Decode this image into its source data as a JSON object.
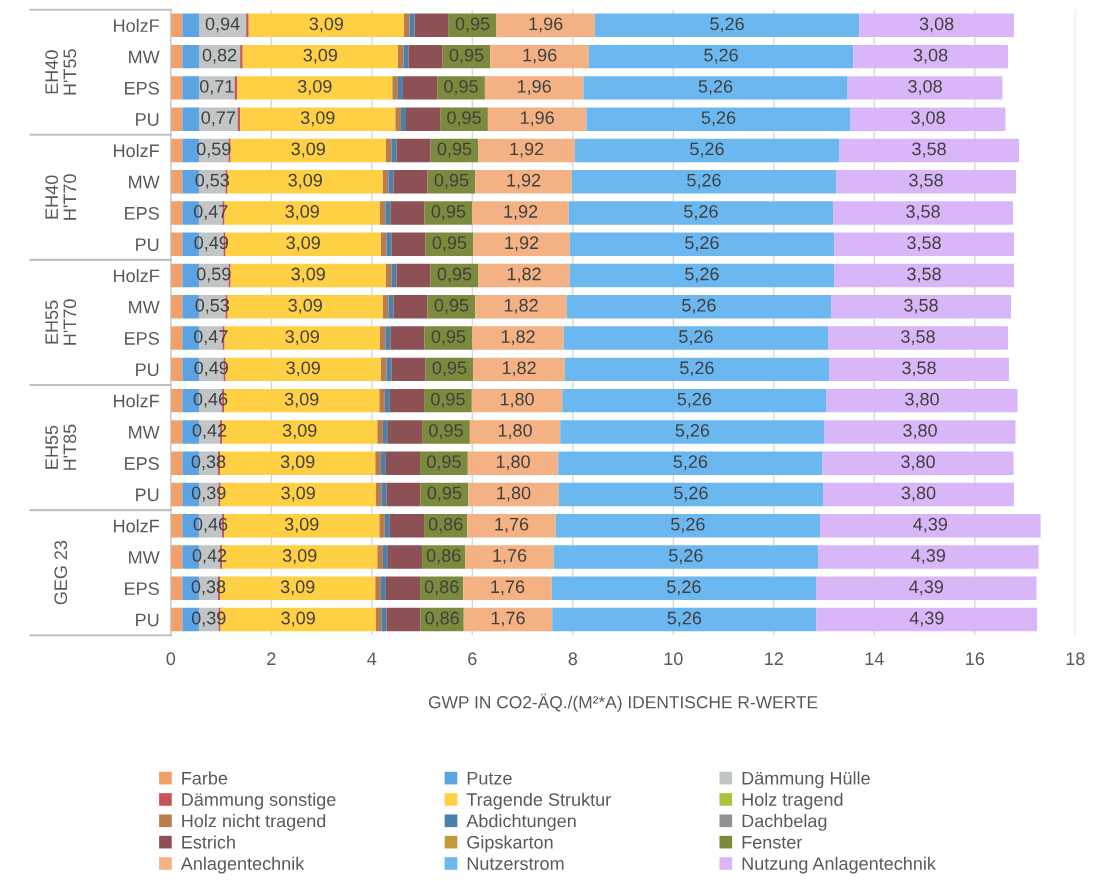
{
  "chart_data": {
    "type": "bar",
    "orientation": "horizontal",
    "stacked": true,
    "categories": [
      "HolzF",
      "MW",
      "EPS",
      "PU",
      "HolzF",
      "MW",
      "EPS",
      "PU",
      "HolzF",
      "MW",
      "EPS",
      "PU",
      "HolzF",
      "MW",
      "EPS",
      "PU",
      "HolzF",
      "MW",
      "EPS",
      "PU"
    ],
    "annotations": [
      "EH40 H'T55",
      "EH40 H'T70",
      "EH55 H'T70",
      "EH55 H'T85",
      "GEG 23"
    ],
    "xlabel": "GWP IN CO2-ÄQ./(M²*A) IDENTISCHE R-WERTE",
    "xlim": [
      0,
      18
    ],
    "xticks": [
      0,
      2,
      4,
      6,
      8,
      10,
      12,
      14,
      16,
      18
    ],
    "grid": "x",
    "legend": "bottom",
    "series": [
      {
        "name": "Farbe",
        "color": "#f0a068",
        "values": [
          0.23,
          0.23,
          0.23,
          0.23,
          0.23,
          0.23,
          0.23,
          0.23,
          0.23,
          0.23,
          0.23,
          0.23,
          0.23,
          0.23,
          0.23,
          0.23,
          0.23,
          0.23,
          0.23,
          0.23
        ]
      },
      {
        "name": "Putze",
        "color": "#5ba3e3",
        "values": [
          0.33,
          0.33,
          0.33,
          0.33,
          0.33,
          0.33,
          0.33,
          0.33,
          0.33,
          0.33,
          0.33,
          0.33,
          0.33,
          0.33,
          0.33,
          0.33,
          0.33,
          0.33,
          0.33,
          0.33
        ]
      },
      {
        "name": "Dämmung Hülle",
        "color": "#c1c5c5",
        "values": [
          0.94,
          0.82,
          0.71,
          0.77,
          0.59,
          0.53,
          0.47,
          0.49,
          0.59,
          0.53,
          0.47,
          0.49,
          0.46,
          0.42,
          0.38,
          0.39,
          0.46,
          0.42,
          0.38,
          0.39
        ],
        "value_labels": [
          "0,94",
          "0,82",
          "0,71",
          "0,77",
          "0,59",
          "0,53",
          "0,47",
          "0,49",
          "0,59",
          "0,53",
          "0,47",
          "0,49",
          "0,46",
          "0,42",
          "0,38",
          "0,39",
          "0,46",
          "0,42",
          "0,38",
          "0,39"
        ]
      },
      {
        "name": "Dämmung sonstige",
        "color": "#c9525c",
        "values": [
          0.05,
          0.05,
          0.05,
          0.05,
          0.04,
          0.04,
          0.04,
          0.04,
          0.04,
          0.04,
          0.04,
          0.04,
          0.04,
          0.04,
          0.04,
          0.04,
          0.04,
          0.04,
          0.04,
          0.04
        ]
      },
      {
        "name": "Tragende Struktur",
        "color": "#ffd044",
        "values": [
          3.09,
          3.09,
          3.09,
          3.09,
          3.09,
          3.09,
          3.09,
          3.09,
          3.09,
          3.09,
          3.09,
          3.09,
          3.09,
          3.09,
          3.09,
          3.09,
          3.09,
          3.09,
          3.09,
          3.09
        ],
        "value_labels": [
          "3,09",
          "3,09",
          "3,09",
          "3,09",
          "3,09",
          "3,09",
          "3,09",
          "3,09",
          "3,09",
          "3,09",
          "3,09",
          "3,09",
          "3,09",
          "3,09",
          "3,09",
          "3,09",
          "3,09",
          "3,09",
          "3,09",
          "3,09"
        ]
      },
      {
        "name": "Holz tragend",
        "color": "#a9c43f",
        "values": [
          0,
          0,
          0,
          0,
          0,
          0,
          0,
          0,
          0,
          0,
          0,
          0,
          0,
          0,
          0,
          0,
          0,
          0,
          0,
          0
        ]
      },
      {
        "name": "Holz nicht tragend",
        "color": "#b87d4b",
        "values": [
          0.11,
          0.11,
          0.11,
          0.11,
          0.11,
          0.11,
          0.11,
          0.11,
          0.11,
          0.11,
          0.11,
          0.11,
          0.11,
          0.11,
          0.11,
          0.11,
          0.11,
          0.11,
          0.11,
          0.11
        ]
      },
      {
        "name": "Abdichtungen",
        "color": "#4a80ab",
        "values": [
          0.1,
          0.1,
          0.1,
          0.1,
          0.1,
          0.1,
          0.1,
          0.1,
          0.1,
          0.1,
          0.1,
          0.1,
          0.1,
          0.1,
          0.1,
          0.1,
          0.1,
          0.1,
          0.1,
          0.1
        ]
      },
      {
        "name": "Dachbelag",
        "color": "#929292",
        "values": [
          0,
          0,
          0,
          0,
          0,
          0,
          0,
          0,
          0,
          0,
          0,
          0,
          0,
          0,
          0,
          0,
          0,
          0,
          0,
          0
        ]
      },
      {
        "name": "Estrich",
        "color": "#8c5055",
        "values": [
          0.68,
          0.68,
          0.68,
          0.68,
          0.68,
          0.68,
          0.68,
          0.68,
          0.68,
          0.68,
          0.68,
          0.68,
          0.68,
          0.68,
          0.68,
          0.68,
          0.68,
          0.68,
          0.68,
          0.68
        ]
      },
      {
        "name": "Gipskarton",
        "color": "#c09a3c",
        "values": [
          0,
          0,
          0,
          0,
          0,
          0,
          0,
          0,
          0,
          0,
          0,
          0,
          0,
          0,
          0,
          0,
          0,
          0,
          0,
          0
        ]
      },
      {
        "name": "Fenster",
        "color": "#7b8a3c",
        "values": [
          0.95,
          0.95,
          0.95,
          0.95,
          0.95,
          0.95,
          0.95,
          0.95,
          0.95,
          0.95,
          0.95,
          0.95,
          0.95,
          0.95,
          0.95,
          0.95,
          0.86,
          0.86,
          0.86,
          0.86
        ],
        "value_labels": [
          "0,95",
          "0,95",
          "0,95",
          "0,95",
          "0,95",
          "0,95",
          "0,95",
          "0,95",
          "0,95",
          "0,95",
          "0,95",
          "0,95",
          "0,95",
          "0,95",
          "0,95",
          "0,95",
          "0,86",
          "0,86",
          "0,86",
          "0,86"
        ]
      },
      {
        "name": "Anlagentechnik",
        "color": "#f4b183",
        "values": [
          1.96,
          1.96,
          1.96,
          1.96,
          1.92,
          1.92,
          1.92,
          1.92,
          1.82,
          1.82,
          1.82,
          1.82,
          1.8,
          1.8,
          1.8,
          1.8,
          1.76,
          1.76,
          1.76,
          1.76
        ],
        "value_labels": [
          "1,96",
          "1,96",
          "1,96",
          "1,96",
          "1,92",
          "1,92",
          "1,92",
          "1,92",
          "1,82",
          "1,82",
          "1,82",
          "1,82",
          "1,80",
          "1,80",
          "1,80",
          "1,80",
          "1,76",
          "1,76",
          "1,76",
          "1,76"
        ]
      },
      {
        "name": "Nutzerstrom",
        "color": "#6bb8f0",
        "values": [
          5.26,
          5.26,
          5.26,
          5.26,
          5.26,
          5.26,
          5.26,
          5.26,
          5.26,
          5.26,
          5.26,
          5.26,
          5.26,
          5.26,
          5.26,
          5.26,
          5.26,
          5.26,
          5.26,
          5.26
        ],
        "value_labels": [
          "5,26",
          "5,26",
          "5,26",
          "5,26",
          "5,26",
          "5,26",
          "5,26",
          "5,26",
          "5,26",
          "5,26",
          "5,26",
          "5,26",
          "5,26",
          "5,26",
          "5,26",
          "5,26",
          "5,26",
          "5,26",
          "5,26",
          "5,26"
        ]
      },
      {
        "name": "Nutzung Anlagentechnik",
        "color": "#d9b6f8",
        "values": [
          3.08,
          3.08,
          3.08,
          3.08,
          3.58,
          3.58,
          3.58,
          3.58,
          3.58,
          3.58,
          3.58,
          3.58,
          3.8,
          3.8,
          3.8,
          3.8,
          4.39,
          4.39,
          4.39,
          4.39
        ],
        "value_labels": [
          "3,08",
          "3,08",
          "3,08",
          "3,08",
          "3,58",
          "3,58",
          "3,58",
          "3,58",
          "3,58",
          "3,58",
          "3,58",
          "3,58",
          "3,80",
          "3,80",
          "3,80",
          "3,80",
          "4,39",
          "4,39",
          "4,39",
          "4,39"
        ]
      }
    ]
  }
}
